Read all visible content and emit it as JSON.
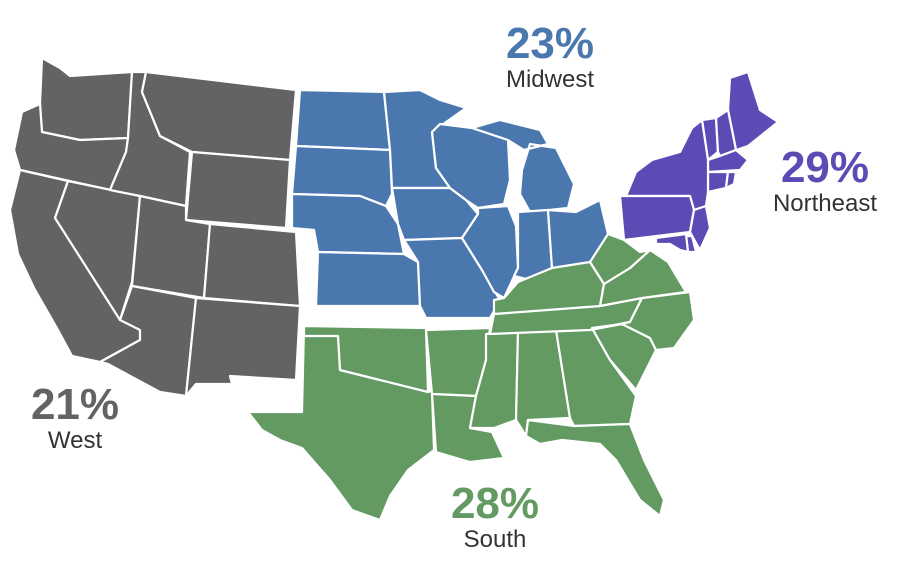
{
  "regions": {
    "west": {
      "percent": "21%",
      "name": "West",
      "color": "#636366"
    },
    "midwest": {
      "percent": "23%",
      "name": "Midwest",
      "color": "#4a78ae"
    },
    "northeast": {
      "percent": "29%",
      "name": "Northeast",
      "color": "#5d4bb5"
    },
    "south": {
      "percent": "28%",
      "name": "South",
      "color": "#629a62"
    }
  }
}
